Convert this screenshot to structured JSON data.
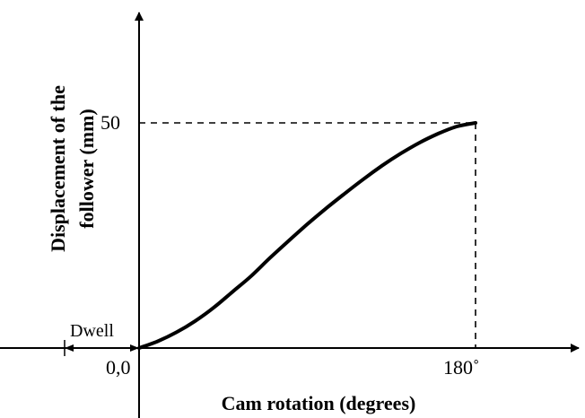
{
  "chart_data": {
    "type": "line",
    "title": "",
    "xlabel": "Cam rotation (degrees)",
    "ylabel_line1": "Displacement of the",
    "ylabel_line2": "follower (mm)",
    "origin_label": "0,0",
    "x_tick_label": "180˚",
    "y_tick_label": "50",
    "annotation": "Dwell",
    "xlim": [
      0,
      180
    ],
    "ylim": [
      0,
      50
    ],
    "grid": false,
    "series": [
      {
        "x": [
          0,
          10,
          20,
          30,
          40,
          50,
          60,
          70,
          80,
          90,
          100,
          110,
          120,
          130,
          140,
          150,
          160,
          170,
          180
        ],
        "y": [
          0,
          1.5,
          3.5,
          6,
          9,
          12.5,
          16,
          20,
          23.8,
          27.5,
          31,
          34.3,
          37.5,
          40.5,
          43.2,
          45.6,
          47.6,
          49.2,
          50
        ]
      }
    ]
  }
}
